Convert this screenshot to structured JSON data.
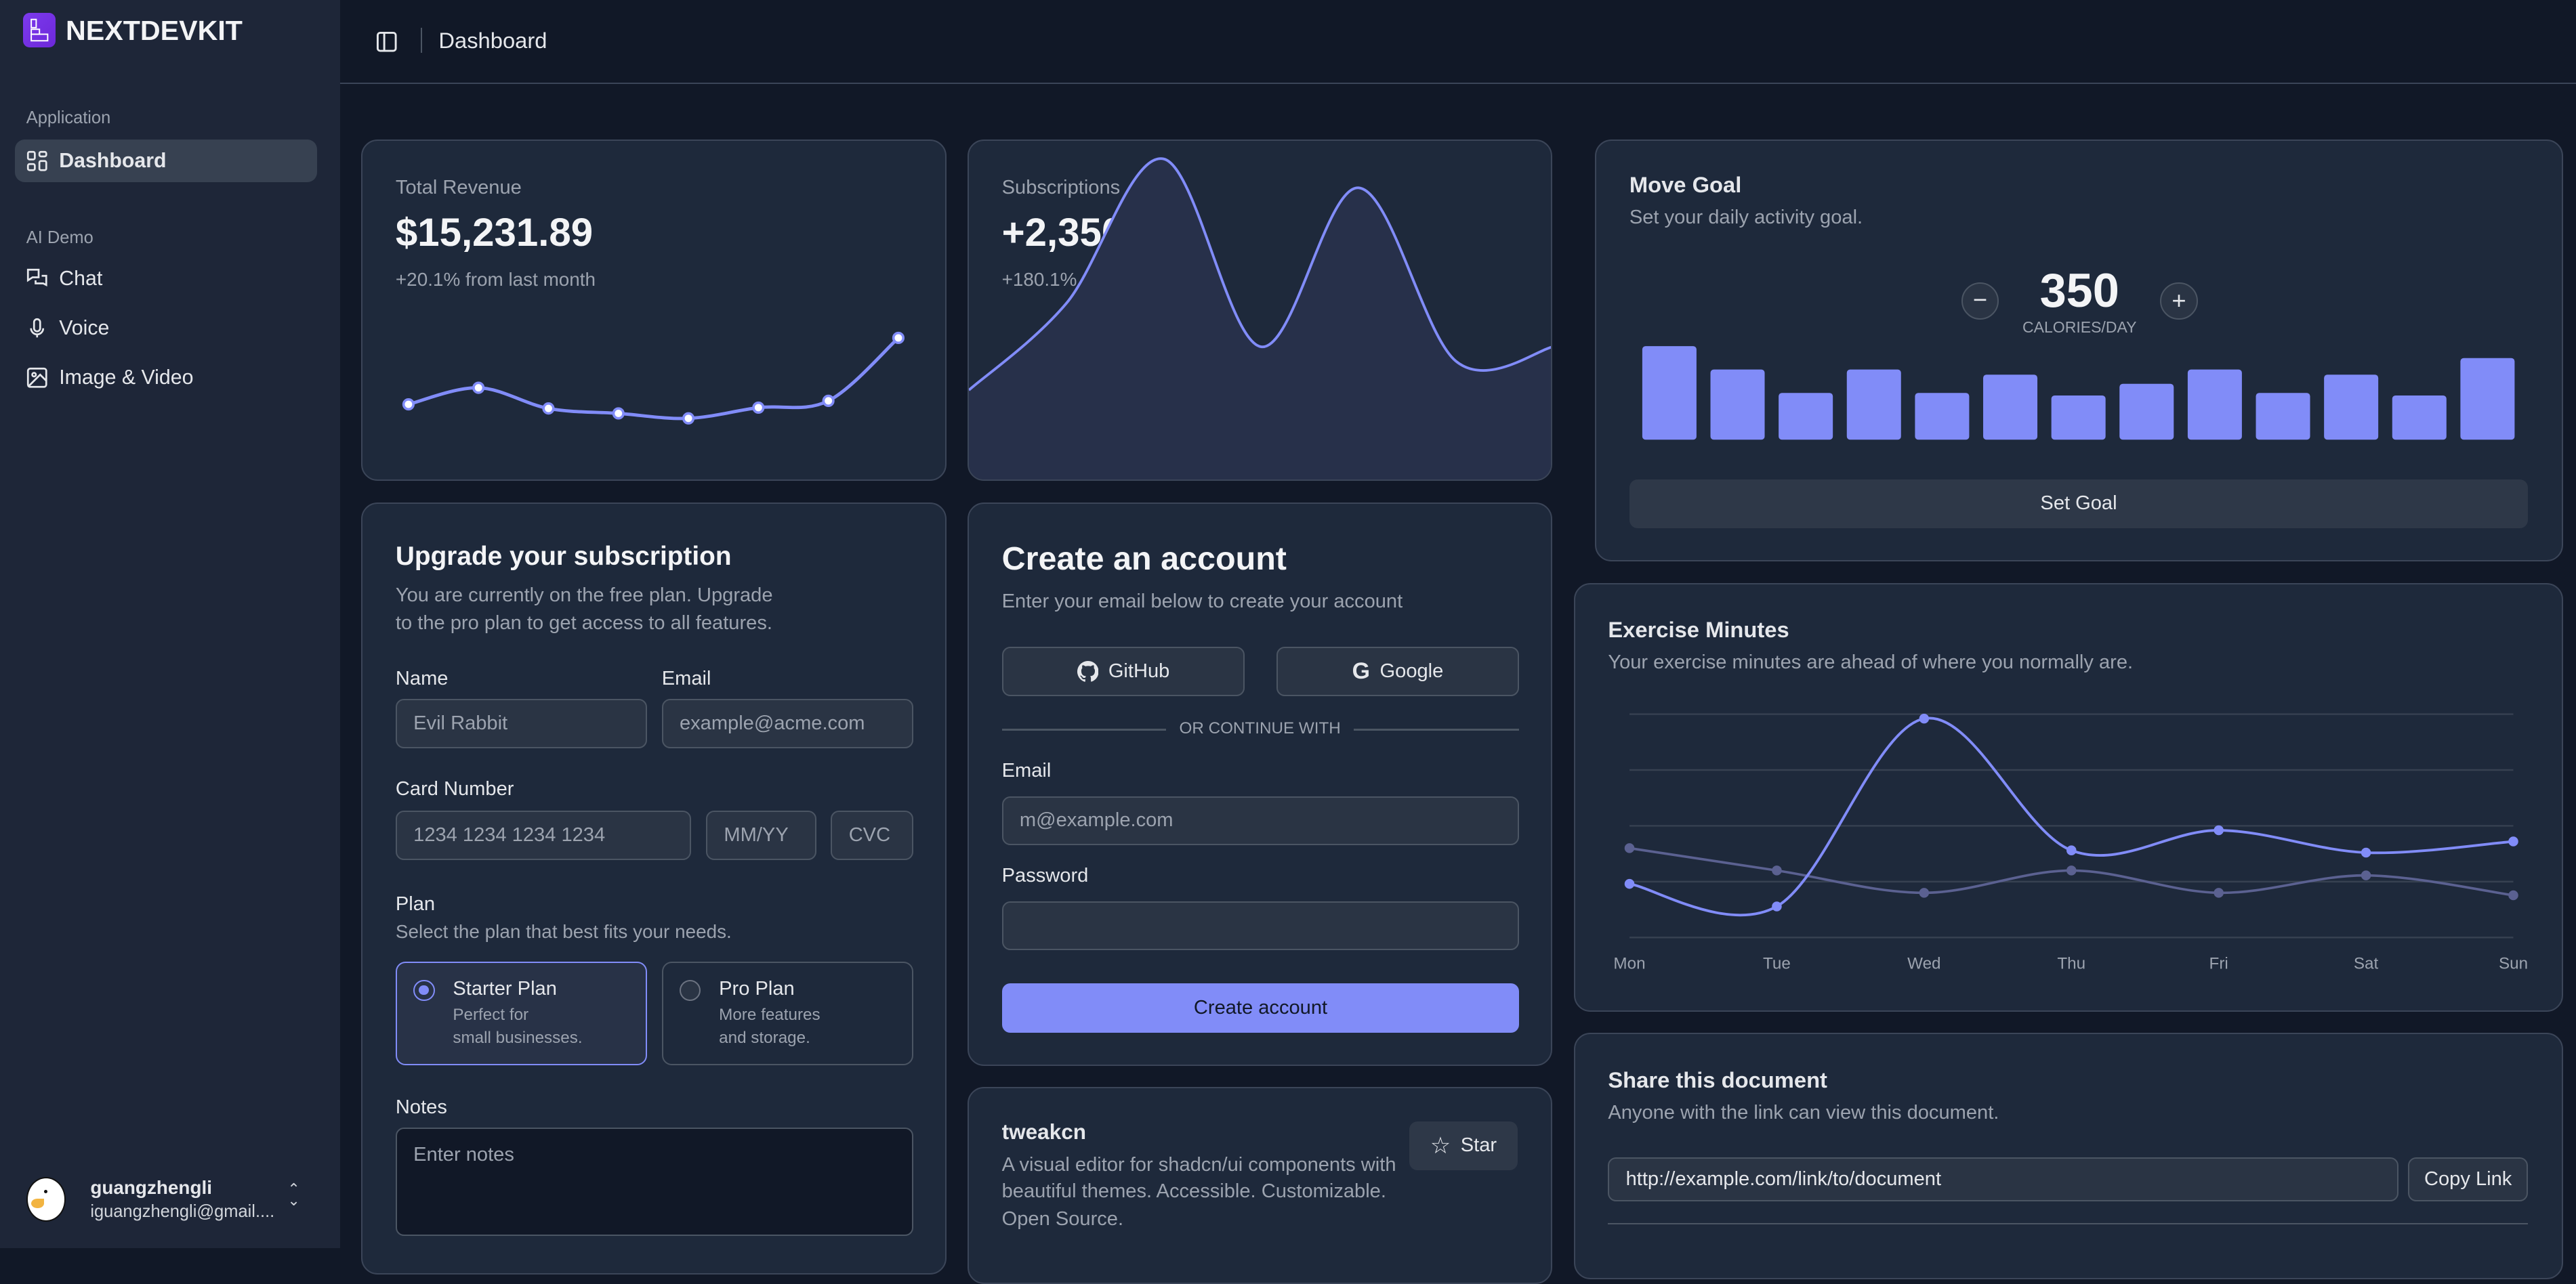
{
  "brand": {
    "name": "NEXTDEVKIT"
  },
  "sidebar": {
    "sections": [
      {
        "label": "Application",
        "items": [
          {
            "label": "Dashboard",
            "icon": "layout-grid-icon",
            "active": true
          }
        ]
      },
      {
        "label": "AI Demo",
        "items": [
          {
            "label": "Chat",
            "icon": "chat-icon"
          },
          {
            "label": "Voice",
            "icon": "mic-icon"
          },
          {
            "label": "Image & Video",
            "icon": "image-icon"
          }
        ]
      }
    ],
    "user": {
      "name": "guangzhengli",
      "email": "iguangzhengli@gmail...."
    }
  },
  "header": {
    "title": "Dashboard"
  },
  "colors": {
    "accent": "#818cf8",
    "card": "#1e293b",
    "background": "#111827"
  },
  "revenue": {
    "label": "Total Revenue",
    "value": "$15,231.89",
    "change": "+20.1% from last month"
  },
  "subscriptions": {
    "label": "Subscriptions",
    "value": "+2,350",
    "change": "+180.1% from last month"
  },
  "upgrade": {
    "title": "Upgrade your subscription",
    "description_1": "You are currently on the free plan. Upgrade",
    "description_2": "to the pro plan to get access to all features.",
    "name_label": "Name",
    "name_placeholder": "Evil Rabbit",
    "email_label": "Email",
    "email_placeholder": "example@acme.com",
    "card_label": "Card Number",
    "card_placeholder": "1234 1234 1234 1234",
    "expiry_placeholder": "MM/YY",
    "cvc_placeholder": "CVC",
    "plan_label": "Plan",
    "plan_description": "Select the plan that best fits your needs.",
    "plans": [
      {
        "name": "Starter Plan",
        "desc1": "Perfect for",
        "desc2": "small businesses.",
        "selected": true
      },
      {
        "name": "Pro Plan",
        "desc1": "More features",
        "desc2": "and storage.",
        "selected": false
      }
    ],
    "notes_label": "Notes",
    "notes_placeholder": "Enter notes"
  },
  "create": {
    "title": "Create an account",
    "description": "Enter your email below to create your account",
    "github": "GitHub",
    "google": "Google",
    "divider": "OR CONTINUE WITH",
    "email_label": "Email",
    "email_placeholder": "m@example.com",
    "password_label": "Password",
    "submit": "Create account"
  },
  "tweakcn": {
    "title": "tweakcn",
    "desc1": "A visual editor for shadcn/ui components with",
    "desc2": "beautiful themes. Accessible. Customizable.",
    "desc3": "Open Source.",
    "star": "Star"
  },
  "move_goal": {
    "title": "Move Goal",
    "description": "Set your daily activity goal.",
    "value": "350",
    "unit": "CALORIES/DAY",
    "button": "Set Goal"
  },
  "exercise": {
    "title": "Exercise Minutes",
    "description": "Your exercise minutes are ahead of where you normally are."
  },
  "share": {
    "title": "Share this document",
    "description": "Anyone with the link can view this document.",
    "link": "http://example.com/link/to/document",
    "button": "Copy Link"
  },
  "chart_data": [
    {
      "type": "line",
      "chart": "revenue",
      "values": [
        10400,
        14405,
        9400,
        8200,
        7000,
        9600,
        11244,
        26475
      ]
    },
    {
      "type": "area",
      "chart": "subscriptions",
      "values": [
        240,
        300,
        400,
        270,
        380,
        260,
        270
      ]
    },
    {
      "type": "bar",
      "chart": "move_goal",
      "values": [
        400,
        300,
        200,
        300,
        200,
        278,
        189,
        239,
        300,
        200,
        278,
        189,
        349
      ]
    },
    {
      "type": "line",
      "chart": "exercise",
      "categories": [
        "Mon",
        "Tue",
        "Wed",
        "Thu",
        "Fri",
        "Sat",
        "Sun"
      ],
      "ylim": [
        0,
        1000
      ],
      "grid": true,
      "series": [
        {
          "values": [
            240,
            139,
            980,
            390,
            480,
            380,
            430
          ]
        },
        {
          "values": [
            400,
            300,
            200,
            300,
            200,
            278,
            189
          ]
        }
      ]
    }
  ]
}
